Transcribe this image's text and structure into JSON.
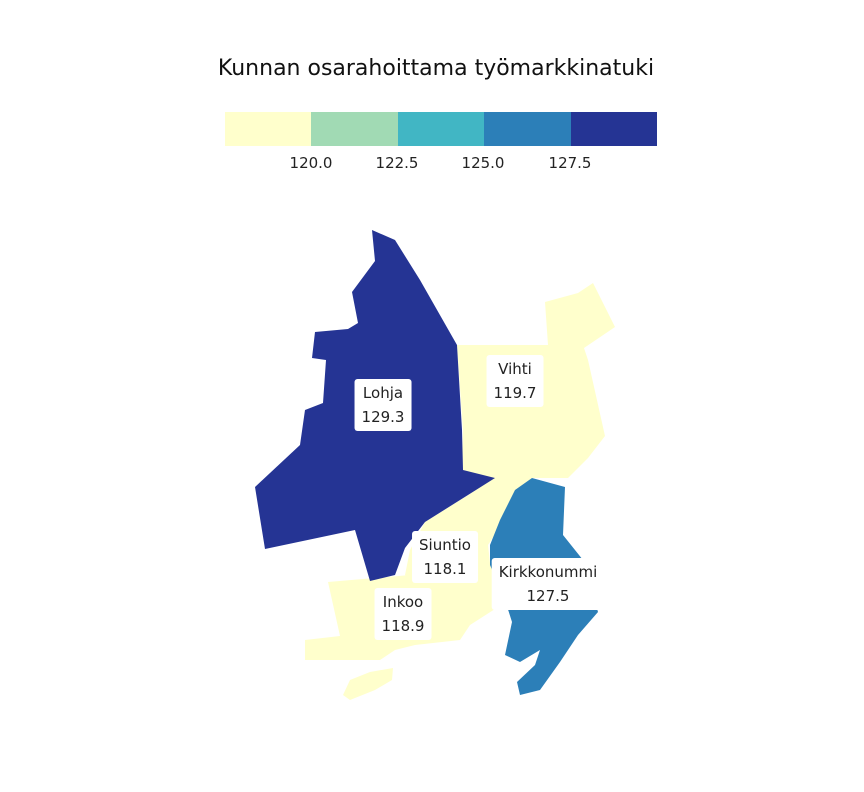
{
  "title": "Kunnan osarahoittama työmarkkinatuki",
  "legend": {
    "colors": [
      "#ffffcc",
      "#a1dab4",
      "#41b6c4",
      "#2c7fb8",
      "#253494"
    ],
    "ticks": [
      "120.0",
      "122.5",
      "125.0",
      "127.5"
    ]
  },
  "municipalities": [
    {
      "name": "Lohja",
      "value": "129.3",
      "color": "#253494"
    },
    {
      "name": "Vihti",
      "value": "119.7",
      "color": "#ffffcc"
    },
    {
      "name": "Siuntio",
      "value": "118.1",
      "color": "#ffffcc"
    },
    {
      "name": "Kirkkonummi",
      "value": "127.5",
      "color": "#2c7fb8"
    },
    {
      "name": "Inkoo",
      "value": "118.9",
      "color": "#ffffcc"
    }
  ]
}
